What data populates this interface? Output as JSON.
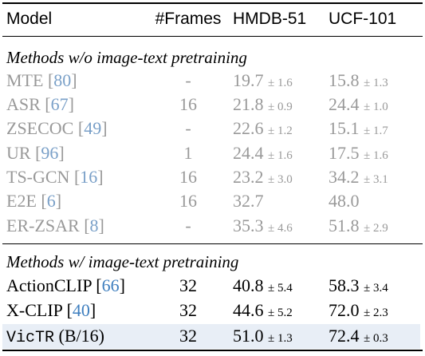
{
  "header": {
    "model": "Model",
    "frames": "#Frames",
    "hmdb": "HMDB-51",
    "ucf": "UCF-101"
  },
  "sections": [
    {
      "title": "Methods w/o image-text pretraining"
    },
    {
      "title": "Methods w/ image-text pretraining"
    }
  ],
  "rows_wo": [
    {
      "name": "MTE",
      "cite": "80",
      "frames": "-",
      "hmdb": "19.7",
      "hmdb_pm": "± 1.6",
      "ucf": "15.8",
      "ucf_pm": "± 1.3"
    },
    {
      "name": "ASR",
      "cite": "67",
      "frames": "16",
      "hmdb": "21.8",
      "hmdb_pm": "± 0.9",
      "ucf": "24.4",
      "ucf_pm": "± 1.0"
    },
    {
      "name": "ZSECOC",
      "cite": "49",
      "frames": "-",
      "hmdb": "22.6",
      "hmdb_pm": "± 1.2",
      "ucf": "15.1",
      "ucf_pm": "± 1.7"
    },
    {
      "name": "UR",
      "cite": "96",
      "frames": "1",
      "hmdb": "24.4",
      "hmdb_pm": "± 1.6",
      "ucf": "17.5",
      "ucf_pm": "± 1.6"
    },
    {
      "name": "TS-GCN",
      "cite": "16",
      "frames": "16",
      "hmdb": "23.2",
      "hmdb_pm": "± 3.0",
      "ucf": "34.2",
      "ucf_pm": "± 3.1"
    },
    {
      "name": "E2E",
      "cite": "6",
      "frames": "16",
      "hmdb": "32.7",
      "hmdb_pm": "",
      "ucf": "48.0",
      "ucf_pm": ""
    },
    {
      "name": "ER-ZSAR",
      "cite": "8",
      "frames": "-",
      "hmdb": "35.3",
      "hmdb_pm": "± 4.6",
      "ucf": "51.8",
      "ucf_pm": "± 2.9"
    }
  ],
  "rows_w": [
    {
      "name": "ActionCLIP",
      "cite": "66",
      "frames": "32",
      "hmdb": "40.8",
      "hmdb_pm": "± 5.4",
      "ucf": "58.3",
      "ucf_pm": "± 3.4"
    },
    {
      "name": "X-CLIP",
      "cite": "40",
      "frames": "32",
      "hmdb": "44.6",
      "hmdb_pm": "± 5.2",
      "ucf": "72.0",
      "ucf_pm": "± 2.3"
    }
  ],
  "ours": {
    "name": "VicTR",
    "suffix": "(B/16)",
    "frames": "32",
    "hmdb": "51.0",
    "hmdb_pm": "± 1.3",
    "ucf": "72.4",
    "ucf_pm": "± 0.3"
  }
}
